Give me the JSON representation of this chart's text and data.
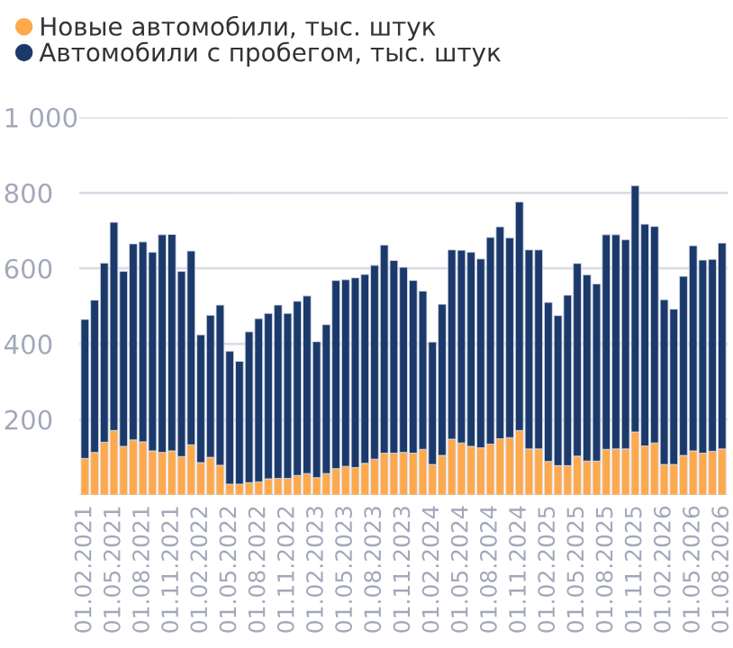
{
  "chart_data": {
    "type": "bar",
    "stacked": true,
    "categories": [
      "01.02.2021",
      null,
      null,
      "01.05.2021",
      null,
      null,
      "01.08.2021",
      null,
      null,
      "01.11.2021",
      null,
      null,
      "01.02.2022",
      null,
      null,
      "01.05.2022",
      null,
      null,
      "01.08.2022",
      null,
      null,
      "01.11.2022",
      null,
      null,
      "01.02.2023",
      null,
      null,
      "01.05.2023",
      null,
      null,
      "01.08.2023",
      null,
      null,
      "01.11.2023",
      null,
      null,
      "01.02.2024",
      null,
      null,
      "01.05.2024",
      null,
      null,
      "01.08.2024",
      null,
      null,
      "01.11.2024",
      null,
      null,
      "01.02.2025",
      null,
      null,
      "01.05.2025",
      null,
      null,
      "01.08.2025",
      null,
      null,
      "01.11.2025",
      null,
      null,
      "01.02.2026",
      null,
      null,
      "01.05.2026",
      null,
      null,
      "01.08.2026"
    ],
    "series": [
      {
        "name": "Новые автомобили, тыс. штук",
        "color": "#ffa94d",
        "values": [
          97,
          113,
          140,
          171,
          129,
          146,
          141,
          117,
          113,
          117,
          102,
          133,
          86,
          100,
          79,
          29,
          29,
          33,
          35,
          43,
          44,
          44,
          52,
          57,
          46,
          57,
          70,
          76,
          73,
          84,
          95,
          111,
          111,
          113,
          111,
          121,
          81,
          105,
          148,
          138,
          129,
          125,
          135,
          149,
          152,
          171,
          122,
          122,
          89,
          78,
          78,
          103,
          90,
          90,
          121,
          122,
          122,
          167,
          130,
          138,
          81,
          81,
          105,
          117,
          111,
          116,
          122
        ]
      },
      {
        "name": "Автомобили с пробегом, тыс. штук",
        "color": "#1b3a6b",
        "values": [
          368,
          403,
          474,
          551,
          463,
          519,
          529,
          526,
          576,
          573,
          490,
          513,
          338,
          376,
          424,
          352,
          325,
          399,
          432,
          438,
          459,
          437,
          461,
          470,
          360,
          394,
          498,
          494,
          502,
          500,
          513,
          551,
          510,
          490,
          457,
          419,
          324,
          400,
          501,
          510,
          514,
          500,
          547,
          561,
          529,
          605,
          527,
          527,
          421,
          397,
          451,
          510,
          493,
          469,
          568,
          567,
          554,
          652,
          587,
          573,
          436,
          411,
          474,
          543,
          511,
          508,
          545
        ]
      }
    ],
    "ylim": [
      0,
      1000
    ],
    "yticks": [
      {
        "value": 0,
        "label": null
      },
      200,
      400,
      600,
      800,
      {
        "value": 1000,
        "label": "1 000"
      }
    ],
    "grid": "y",
    "legend": "top left",
    "marker": "circle"
  }
}
